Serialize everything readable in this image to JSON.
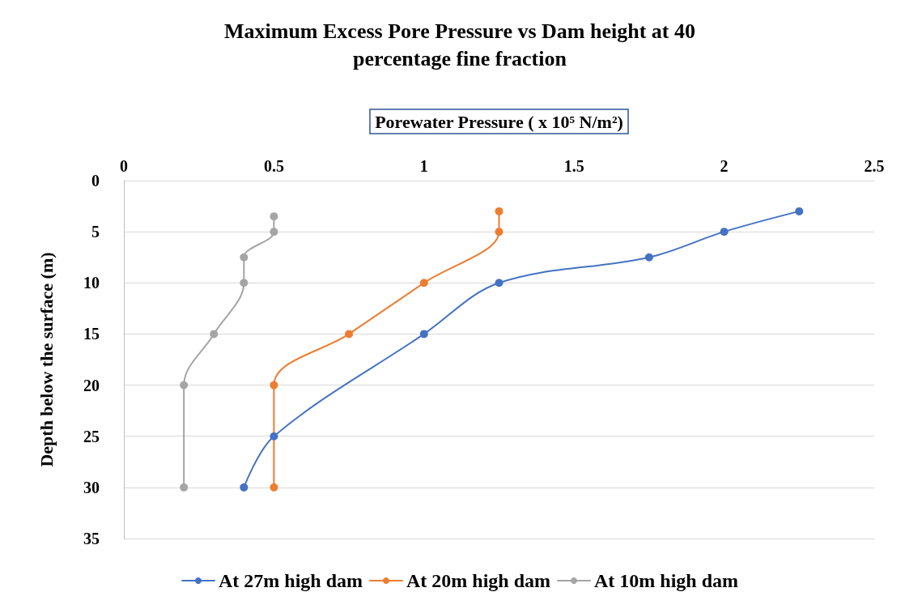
{
  "chart_data": {
    "type": "line",
    "title": "Maximum Excess Pore Pressure vs Dam height at 40\npercentage fine fraction",
    "xlabel": "Porewater Pressure ( x 10⁵ N/m²)",
    "ylabel": "Depth below the surface (m)",
    "xlim": [
      0,
      2.5
    ],
    "xticks": [
      0,
      0.5,
      1,
      1.5,
      2,
      2.5
    ],
    "ylim": [
      35,
      0
    ],
    "yticks": [
      0,
      5,
      10,
      15,
      20,
      25,
      30,
      35
    ],
    "grid": "y",
    "legend": "bottom",
    "marker": "circle",
    "line_style": "solid",
    "series": [
      {
        "name": "At 27m high dam",
        "color": "#4472c4",
        "x": [
          2.25,
          2,
          1.75,
          1.25,
          1,
          0.5,
          0.4
        ],
        "values": [
          3,
          5,
          7.5,
          10,
          15,
          25,
          30
        ]
      },
      {
        "name": "At 20m high dam",
        "color": "#ed7d31",
        "x": [
          1.25,
          1.25,
          1,
          0.75,
          0.5,
          0.5
        ],
        "values": [
          3,
          5,
          10,
          15,
          20,
          30
        ]
      },
      {
        "name": "At 10m high dam",
        "color": "#a5a5a5",
        "x": [
          0.5,
          0.5,
          0.4,
          0.4,
          0.3,
          0.2,
          0.2
        ],
        "values": [
          3.5,
          5,
          7.5,
          10,
          15,
          20,
          30
        ]
      }
    ]
  }
}
